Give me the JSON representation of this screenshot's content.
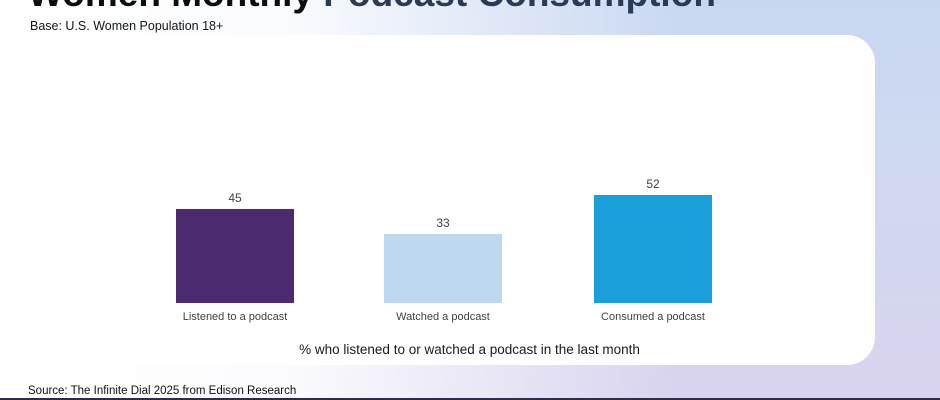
{
  "header": {
    "title_part1": "Women Monthly ",
    "title_part2": "Podcast Consumption",
    "base_note": "Base: U.S. Women Population 18+"
  },
  "chart_data": {
    "type": "bar",
    "title": "Women Monthly Podcast Consumption",
    "subtitle": "Base: U.S. Women Population 18+",
    "categories": [
      "Listened to a podcast",
      "Watched a podcast",
      "Consumed a podcast"
    ],
    "values": [
      45,
      33,
      52
    ],
    "colors": [
      "#4b2a70",
      "#bdd7ee",
      "#1a9fdb"
    ],
    "data_labels": true,
    "caption": "% who listened to or watched a podcast in the last month",
    "xlabel": "",
    "ylabel": "",
    "ylim": [
      0,
      60
    ],
    "grid": false,
    "legend": false
  },
  "footer": {
    "source": "Source: The Infinite Dial 2025 from Edison Research"
  },
  "style": {
    "card_background": "#ffffff",
    "background_top": "#c9d8f2",
    "background_bottom": "#d9d3ef"
  }
}
